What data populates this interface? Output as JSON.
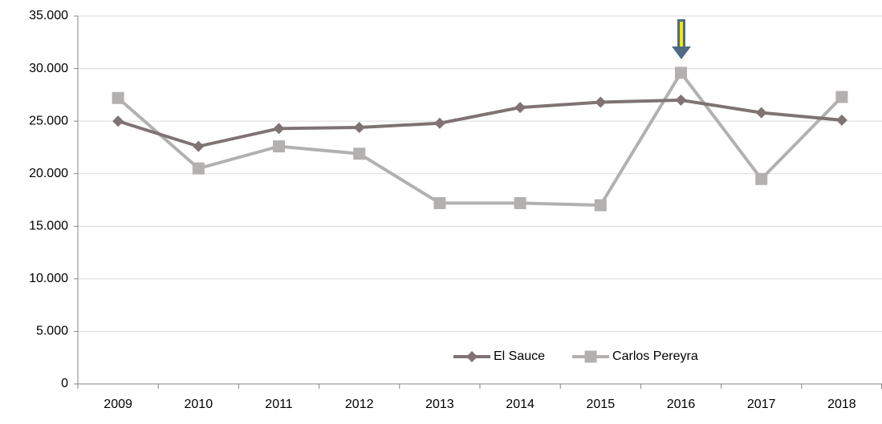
{
  "chart_data": {
    "type": "line",
    "categories": [
      "2009",
      "2010",
      "2011",
      "2012",
      "2013",
      "2014",
      "2015",
      "2016",
      "2017",
      "2018"
    ],
    "series": [
      {
        "name": "El Sauce",
        "color": "#7f7374",
        "marker": "diamond",
        "values": [
          25000,
          22600,
          24300,
          24400,
          24800,
          26300,
          26800,
          27000,
          25800,
          25100
        ]
      },
      {
        "name": "Carlos Pereyra",
        "color": "#b3b0b0",
        "marker": "square",
        "values": [
          27200,
          20500,
          22600,
          21900,
          17200,
          17200,
          17000,
          29600,
          19500,
          27300
        ]
      }
    ],
    "ylim": [
      0,
      35000
    ],
    "yticks": [
      0,
      {
        "value": 5000,
        "label": "5.000"
      },
      {
        "value": 10000,
        "label": "10.000"
      },
      {
        "value": 15000,
        "label": "15.000"
      },
      {
        "value": 20000,
        "label": "20.000"
      },
      {
        "value": 25000,
        "label": "25.000"
      },
      {
        "value": 30000,
        "label": "30.000"
      },
      {
        "value": 35000,
        "label": "35.000"
      }
    ],
    "grid": true,
    "legend": "bottom"
  }
}
